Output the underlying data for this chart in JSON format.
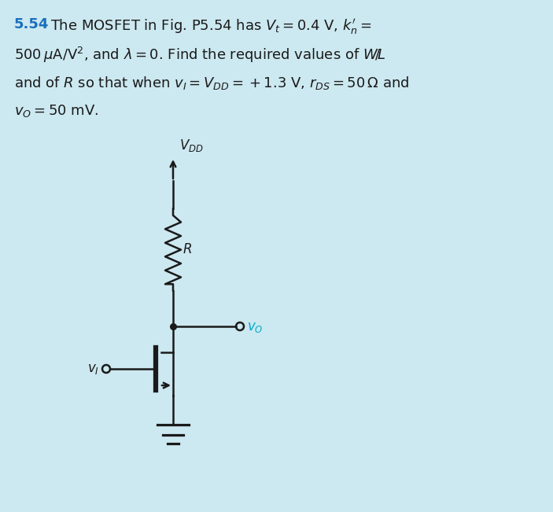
{
  "bg_color": "#cce8f0",
  "text_color": "#1a1a1a",
  "blue_color": "#1a6fbd",
  "circuit_color": "#1a1a1a",
  "cyan_color": "#00aacc",
  "fig_width": 7.03,
  "fig_height": 6.51,
  "problem_number": "5.54",
  "vdd_label": "$V_{DD}$",
  "R_label": "$R$",
  "vO_label": "$v_O$",
  "vI_label": "$v_I$"
}
